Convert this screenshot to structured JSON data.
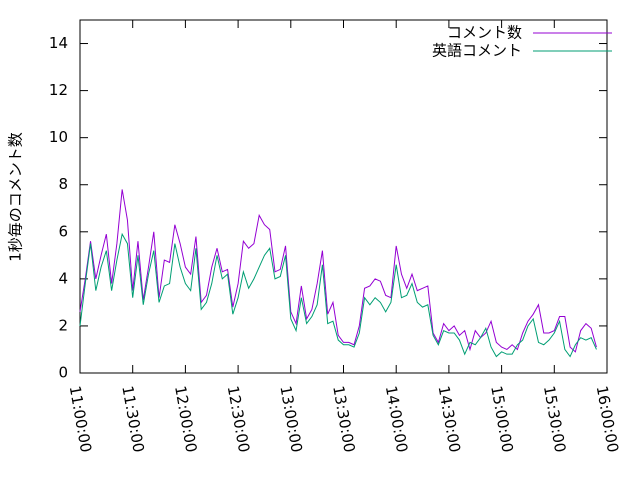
{
  "chart_data": {
    "type": "line",
    "ylabel": "1秒毎のコメント数",
    "x": [
      "11:00:00",
      "11:03:00",
      "11:06:00",
      "11:09:00",
      "11:12:00",
      "11:15:00",
      "11:18:00",
      "11:21:00",
      "11:24:00",
      "11:27:00",
      "11:30:00",
      "11:33:00",
      "11:36:00",
      "11:39:00",
      "11:42:00",
      "11:45:00",
      "11:48:00",
      "11:51:00",
      "11:54:00",
      "11:57:00",
      "12:00:00",
      "12:03:00",
      "12:06:00",
      "12:09:00",
      "12:12:00",
      "12:15:00",
      "12:18:00",
      "12:21:00",
      "12:24:00",
      "12:27:00",
      "12:30:00",
      "12:33:00",
      "12:36:00",
      "12:39:00",
      "12:42:00",
      "12:45:00",
      "12:48:00",
      "12:51:00",
      "12:54:00",
      "12:57:00",
      "13:00:00",
      "13:03:00",
      "13:06:00",
      "13:09:00",
      "13:12:00",
      "13:15:00",
      "13:18:00",
      "13:21:00",
      "13:24:00",
      "13:27:00",
      "13:30:00",
      "13:33:00",
      "13:36:00",
      "13:39:00",
      "13:42:00",
      "13:45:00",
      "13:48:00",
      "13:51:00",
      "13:54:00",
      "13:57:00",
      "14:00:00",
      "14:03:00",
      "14:06:00",
      "14:09:00",
      "14:12:00",
      "14:15:00",
      "14:18:00",
      "14:21:00",
      "14:24:00",
      "14:27:00",
      "14:30:00",
      "14:33:00",
      "14:36:00",
      "14:39:00",
      "14:42:00",
      "14:45:00",
      "14:48:00",
      "14:51:00",
      "14:54:00",
      "14:57:00",
      "15:00:00",
      "15:03:00",
      "15:06:00",
      "15:09:00",
      "15:12:00",
      "15:15:00",
      "15:18:00",
      "15:21:00",
      "15:24:00",
      "15:27:00",
      "15:30:00",
      "15:33:00",
      "15:36:00",
      "15:39:00",
      "15:42:00",
      "15:45:00",
      "15:48:00",
      "15:51:00",
      "15:54:00"
    ],
    "series": [
      {
        "name": "コメント数",
        "color": "#9400d3",
        "values": [
          2.6,
          4.0,
          5.6,
          4.0,
          5.0,
          5.9,
          3.8,
          5.5,
          7.8,
          6.5,
          3.5,
          5.6,
          3.1,
          4.5,
          6.0,
          3.2,
          4.8,
          4.7,
          6.3,
          5.5,
          4.5,
          4.2,
          5.8,
          3.0,
          3.3,
          4.5,
          5.3,
          4.3,
          4.4,
          2.8,
          3.8,
          5.6,
          5.3,
          5.5,
          6.7,
          6.3,
          6.1,
          4.3,
          4.4,
          5.4,
          2.6,
          2.1,
          3.7,
          2.3,
          2.7,
          3.8,
          5.2,
          2.5,
          3.0,
          1.6,
          1.3,
          1.3,
          1.2,
          2.0,
          3.6,
          3.7,
          4.0,
          3.9,
          3.3,
          3.2,
          5.4,
          4.2,
          3.6,
          4.2,
          3.5,
          3.6,
          3.7,
          1.7,
          1.3,
          2.1,
          1.8,
          2.0,
          1.6,
          1.8,
          1.0,
          1.8,
          1.5,
          1.7,
          2.2,
          1.3,
          1.1,
          1.0,
          1.2,
          1.0,
          1.7,
          2.2,
          2.5,
          2.9,
          1.7,
          1.7,
          1.8,
          2.4,
          2.4,
          1.1,
          0.9,
          1.8,
          2.1,
          1.9,
          1.1
        ]
      },
      {
        "name": "英語コメント",
        "color": "#009e73",
        "values": [
          2.0,
          3.8,
          5.5,
          3.5,
          4.5,
          5.2,
          3.5,
          4.8,
          5.9,
          5.5,
          3.2,
          5.0,
          2.9,
          4.2,
          5.2,
          3.0,
          3.7,
          3.8,
          5.5,
          4.5,
          3.8,
          3.5,
          5.3,
          2.7,
          3.0,
          3.8,
          5.0,
          4.0,
          4.2,
          2.5,
          3.2,
          4.3,
          3.6,
          4.0,
          4.5,
          5.0,
          5.3,
          4.0,
          4.1,
          5.0,
          2.3,
          1.8,
          3.2,
          2.1,
          2.4,
          2.9,
          4.6,
          2.1,
          2.2,
          1.4,
          1.2,
          1.2,
          1.1,
          1.7,
          3.2,
          2.9,
          3.2,
          3.0,
          2.6,
          3.0,
          4.6,
          3.2,
          3.3,
          3.8,
          3.0,
          2.8,
          2.9,
          1.6,
          1.2,
          1.8,
          1.7,
          1.7,
          1.4,
          0.8,
          1.3,
          1.2,
          1.5,
          1.9,
          1.1,
          0.7,
          0.9,
          0.8,
          0.8,
          1.2,
          1.4,
          2.0,
          2.3,
          1.3,
          1.2,
          1.4,
          1.7,
          2.2,
          1.0,
          0.7,
          1.2,
          1.5,
          1.4,
          1.5,
          1.0
        ]
      }
    ],
    "xlim": [
      "11:00:00",
      "16:00:00"
    ],
    "xticks": [
      "11:00:00",
      "11:30:00",
      "12:00:00",
      "12:30:00",
      "13:00:00",
      "13:30:00",
      "14:00:00",
      "14:30:00",
      "15:00:00",
      "15:30:00",
      "16:00:00"
    ],
    "ylim": [
      0,
      15
    ],
    "yticks": [
      0,
      2,
      4,
      6,
      8,
      10,
      12,
      14
    ],
    "legend": "top-right"
  }
}
